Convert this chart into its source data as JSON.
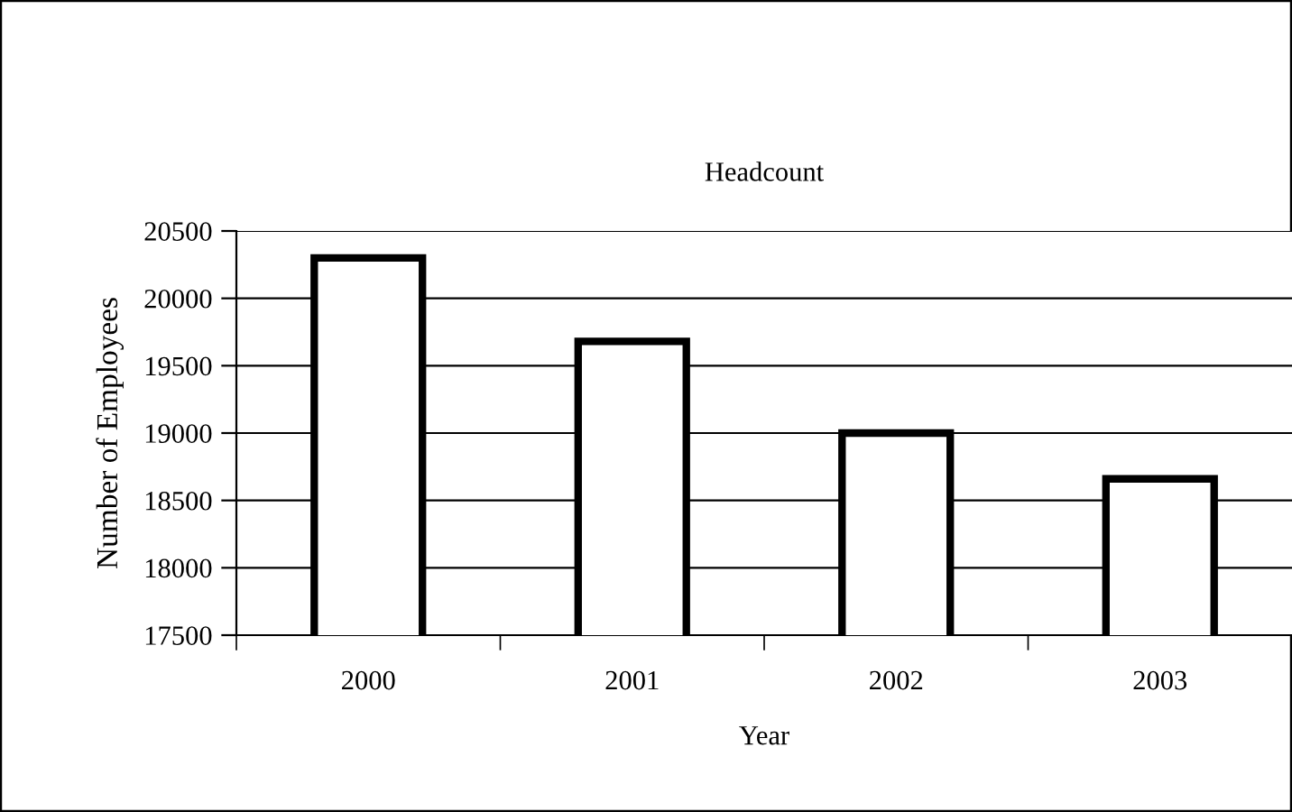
{
  "chart_data": {
    "type": "bar",
    "title": "Headcount",
    "xlabel": "Year",
    "ylabel": "Number of Employees",
    "categories": [
      "2000",
      "2001",
      "2002",
      "2003"
    ],
    "values": [
      20300,
      19680,
      19000,
      18660
    ],
    "color": "#ffffff",
    "ylim": [
      17500,
      20500
    ],
    "yticks": [
      17500,
      18000,
      18500,
      19000,
      19500,
      20000,
      20500
    ],
    "grid": "y",
    "legend": false
  }
}
